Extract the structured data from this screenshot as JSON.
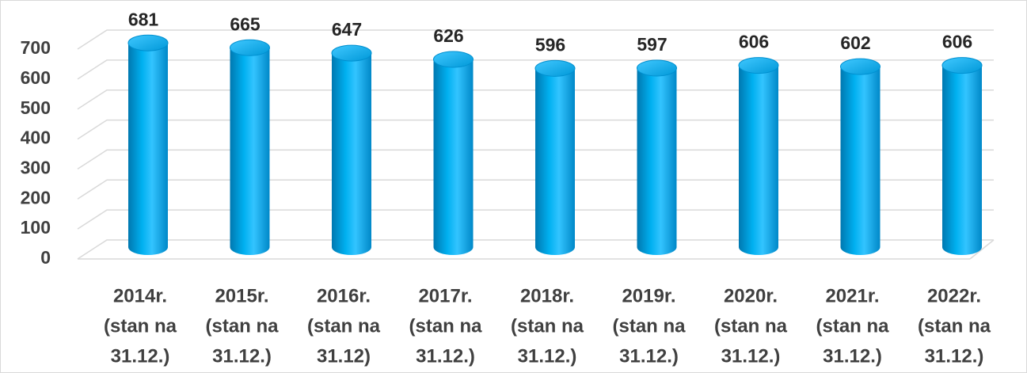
{
  "chart_data": {
    "type": "bar3d",
    "categories": [
      [
        "2014r.",
        "(stan na",
        "31.12.)"
      ],
      [
        "2015r.",
        "(stan na",
        "31.12.)"
      ],
      [
        "2016r.",
        "(stan na",
        "31.12)"
      ],
      [
        "2017r.",
        "(stan na",
        "31.12.)"
      ],
      [
        "2018r.",
        "(stan na",
        "31.12.)"
      ],
      [
        "2019r.",
        "(stan na",
        "31.12.)"
      ],
      [
        "2020r.",
        "(stan na",
        "31.12.)"
      ],
      [
        "2021r.",
        "(stan na",
        "31.12.)"
      ],
      [
        "2022r.",
        "(stan na",
        "31.12.)"
      ]
    ],
    "values": [
      681,
      665,
      647,
      626,
      596,
      597,
      606,
      602,
      606
    ],
    "color": "#00b0f0",
    "ylim": [
      0,
      700
    ],
    "yticks": [
      0,
      100,
      200,
      300,
      400,
      500,
      600,
      700
    ],
    "grid": true
  }
}
